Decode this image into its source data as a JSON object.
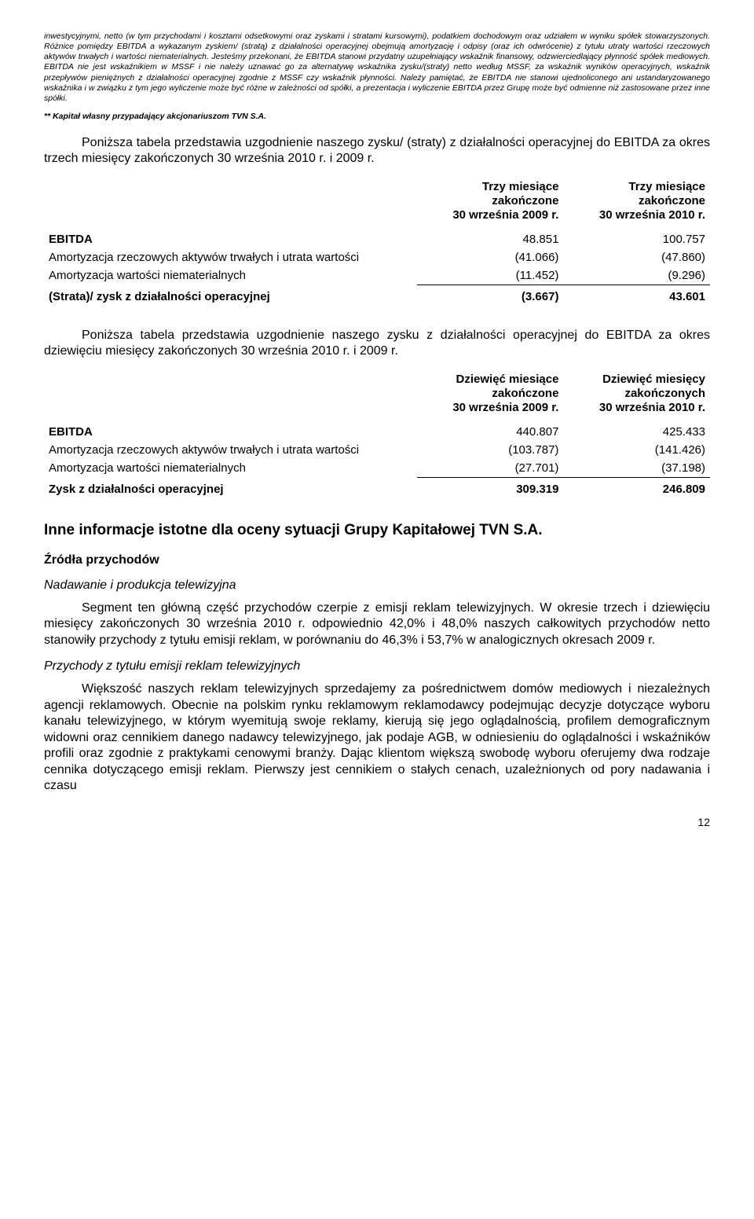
{
  "footnote1": "inwestycyjnymi, netto (w tym przychodami i kosztami odsetkowymi oraz zyskami i stratami kursowymi), podatkiem dochodowym oraz udziałem w wyniku spółek stowarzyszonych. Różnice pomiędzy EBITDA a wykazanym zyskiem/ (stratą) z działalności operacyjnej obejmują amortyzację i odpisy (oraz ich odwrócenie) z tytułu utraty wartości rzeczowych aktywów trwałych i wartości niematerialnych. Jesteśmy przekonani, że EBITDA stanowi przydatny uzupełniający wskaźnik finansowy, odzwierciedlający płynność spółek mediowych. EBITDA nie jest wskaźnikiem w MSSF i nie należy uznawać go za alternatywę wskaźnika zysku/(straty) netto według MSSF, za wskaźnik wyników operacyjnych, wskaźnik przepływów pieniężnych z działalności operacyjnej zgodnie z MSSF czy wskaźnik płynności. Należy pamiętać, że EBITDA nie stanowi ujednoliconego ani ustandaryzowanego wskaźnika i w związku z tym jego wyliczenie może być różne w zależności od spółki, a prezentacja i wyliczenie EBITDA przez Grupę może być odmienne niż zastosowane przez inne spółki.",
  "footnote2": "** Kapitał własny przypadający akcjonariuszom TVN S.A.",
  "intro1": "Poniższa tabela przedstawia uzgodnienie naszego zysku/ (straty) z działalności operacyjnej do EBITDA za okres trzech miesięcy zakończonych 30 września 2010 r. i 2009 r.",
  "table1": {
    "col1_l1": "Trzy miesiące",
    "col1_l2": "zakończone",
    "col1_l3": "30 września 2009 r.",
    "col2_l1": "Trzy miesiące",
    "col2_l2": "zakończone",
    "col2_l3": "30 września 2010 r.",
    "rows": [
      {
        "label": "EBITDA",
        "v1": "48.851",
        "v2": "100.757"
      },
      {
        "label": "Amortyzacja rzeczowych aktywów trwałych i utrata wartości",
        "v1": "(41.066)",
        "v2": "(47.860)"
      },
      {
        "label": "Amortyzacja wartości niematerialnych",
        "v1": "(11.452)",
        "v2": "(9.296)"
      }
    ],
    "total": {
      "label": "(Strata)/ zysk z działalności operacyjnej",
      "v1": "(3.667)",
      "v2": "43.601"
    }
  },
  "intro2": "Poniższa tabela przedstawia uzgodnienie naszego zysku z działalności operacyjnej do EBITDA za okres dziewięciu miesięcy zakończonych 30 września 2010 r. i 2009 r.",
  "table2": {
    "col1_l1": "Dziewięć miesiące",
    "col1_l2": "zakończone",
    "col1_l3": "30 września 2009 r.",
    "col2_l1": "Dziewięć miesięcy",
    "col2_l2": "zakończonych",
    "col2_l3": "30 września 2010 r.",
    "rows": [
      {
        "label": "EBITDA",
        "v1": "440.807",
        "v2": "425.433"
      },
      {
        "label": "Amortyzacja rzeczowych aktywów trwałych i utrata wartości",
        "v1": "(103.787)",
        "v2": "(141.426)"
      },
      {
        "label": "Amortyzacja wartości niematerialnych",
        "v1": "(27.701)",
        "v2": "(37.198)"
      }
    ],
    "total": {
      "label": "Zysk z działalności operacyjnej",
      "v1": "309.319",
      "v2": "246.809"
    }
  },
  "section_heading": "Inne informacje istotne dla oceny sytuacji Grupy Kapitałowej TVN S.A.",
  "sub1": "Źródła przychodów",
  "sub1a": "Nadawanie i produkcja telewizyjna",
  "para1": "Segment ten główną część przychodów czerpie z emisji reklam telewizyjnych. W okresie trzech i dziewięciu miesięcy zakończonych 30 września 2010 r. odpowiednio 42,0% i 48,0% naszych całkowitych przychodów netto stanowiły przychody z tytułu emisji reklam, w porównaniu do 46,3% i 53,7% w analogicznych okresach 2009 r.",
  "sub1b": "Przychody z tytułu emisji reklam telewizyjnych",
  "para2": "Większość naszych reklam telewizyjnych sprzedajemy za pośrednictwem domów mediowych i niezależnych agencji reklamowych. Obecnie na polskim rynku reklamowym reklamodawcy podejmując decyzje dotyczące wyboru kanału telewizyjnego, w którym wyemitują swoje reklamy, kierują się jego oglądalnością, profilem demograficznym widowni oraz cennikiem danego nadawcy telewizyjnego, jak podaje AGB, w odniesieniu do oglądalności i wskaźników profili oraz zgodnie z praktykami cenowymi branży. Dając klientom większą swobodę wyboru oferujemy dwa rodzaje cennika dotyczącego emisji reklam. Pierwszy jest cennikiem o stałych cenach, uzależnionych od pory nadawania i czasu",
  "pagenum": "12"
}
